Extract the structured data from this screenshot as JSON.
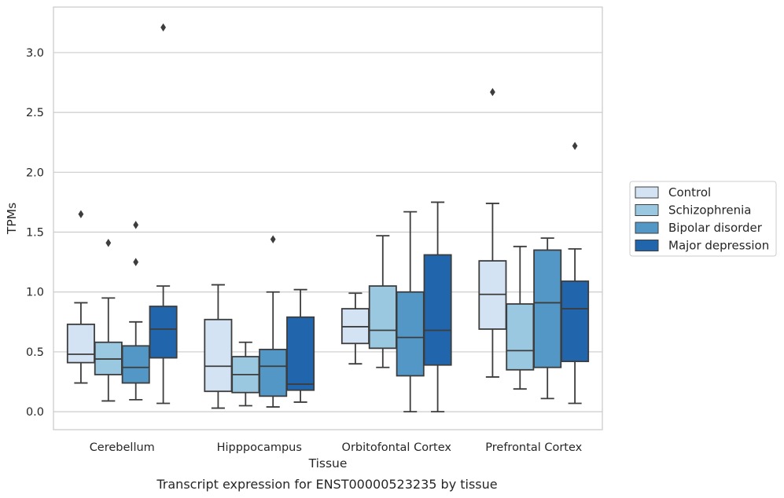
{
  "caption": "Transcript expression for ENST00000523235 by tissue",
  "chart_data": {
    "type": "box",
    "title": "",
    "xlabel": "Tissue",
    "ylabel": "TPMs",
    "ylim": [
      -0.15,
      3.38
    ],
    "yticks": [
      0.0,
      0.5,
      1.0,
      1.5,
      2.0,
      2.5,
      3.0
    ],
    "ytick_labels": [
      "0.0",
      "0.5",
      "1.0",
      "1.5",
      "2.0",
      "2.5",
      "3.0"
    ],
    "grid": "horizontal",
    "legend_position": "right",
    "categories": [
      "Cerebellum",
      "Hipppocampus",
      "Orbitofontal Cortex",
      "Prefrontal Cortex"
    ],
    "series": [
      {
        "name": "Control",
        "color": "#d3e3f3",
        "boxes": [
          {
            "whislo": 0.24,
            "q1": 0.41,
            "med": 0.48,
            "q3": 0.73,
            "whishi": 0.91,
            "fliers": [
              1.65
            ]
          },
          {
            "whislo": 0.03,
            "q1": 0.17,
            "med": 0.38,
            "q3": 0.77,
            "whishi": 1.06,
            "fliers": []
          },
          {
            "whislo": 0.4,
            "q1": 0.57,
            "med": 0.71,
            "q3": 0.86,
            "whishi": 0.99,
            "fliers": []
          },
          {
            "whislo": 0.29,
            "q1": 0.69,
            "med": 0.98,
            "q3": 1.26,
            "whishi": 1.74,
            "fliers": [
              2.67
            ]
          }
        ]
      },
      {
        "name": "Schizophrenia",
        "color": "#9ac8e0",
        "boxes": [
          {
            "whislo": 0.09,
            "q1": 0.31,
            "med": 0.44,
            "q3": 0.58,
            "whishi": 0.95,
            "fliers": [
              1.41
            ]
          },
          {
            "whislo": 0.05,
            "q1": 0.16,
            "med": 0.31,
            "q3": 0.46,
            "whishi": 0.58,
            "fliers": []
          },
          {
            "whislo": 0.37,
            "q1": 0.53,
            "med": 0.68,
            "q3": 1.05,
            "whishi": 1.47,
            "fliers": []
          },
          {
            "whislo": 0.19,
            "q1": 0.35,
            "med": 0.51,
            "q3": 0.9,
            "whishi": 1.38,
            "fliers": []
          }
        ]
      },
      {
        "name": "Bipolar disorder",
        "color": "#5297c6",
        "boxes": [
          {
            "whislo": 0.1,
            "q1": 0.24,
            "med": 0.37,
            "q3": 0.55,
            "whishi": 0.75,
            "fliers": [
              1.25,
              1.56
            ]
          },
          {
            "whislo": 0.04,
            "q1": 0.13,
            "med": 0.38,
            "q3": 0.52,
            "whishi": 1.0,
            "fliers": [
              1.44
            ]
          },
          {
            "whislo": 0.0,
            "q1": 0.3,
            "med": 0.62,
            "q3": 1.0,
            "whishi": 1.67,
            "fliers": []
          },
          {
            "whislo": 0.11,
            "q1": 0.37,
            "med": 0.91,
            "q3": 1.35,
            "whishi": 1.45,
            "fliers": []
          }
        ]
      },
      {
        "name": "Major depression",
        "color": "#2166ac",
        "boxes": [
          {
            "whislo": 0.07,
            "q1": 0.45,
            "med": 0.69,
            "q3": 0.88,
            "whishi": 1.05,
            "fliers": [
              3.21
            ]
          },
          {
            "whislo": 0.08,
            "q1": 0.18,
            "med": 0.23,
            "q3": 0.79,
            "whishi": 1.02,
            "fliers": []
          },
          {
            "whislo": 0.0,
            "q1": 0.39,
            "med": 0.68,
            "q3": 1.31,
            "whishi": 1.75,
            "fliers": []
          },
          {
            "whislo": 0.07,
            "q1": 0.42,
            "med": 0.86,
            "q3": 1.09,
            "whishi": 1.36,
            "fliers": [
              2.22
            ]
          }
        ]
      }
    ]
  }
}
